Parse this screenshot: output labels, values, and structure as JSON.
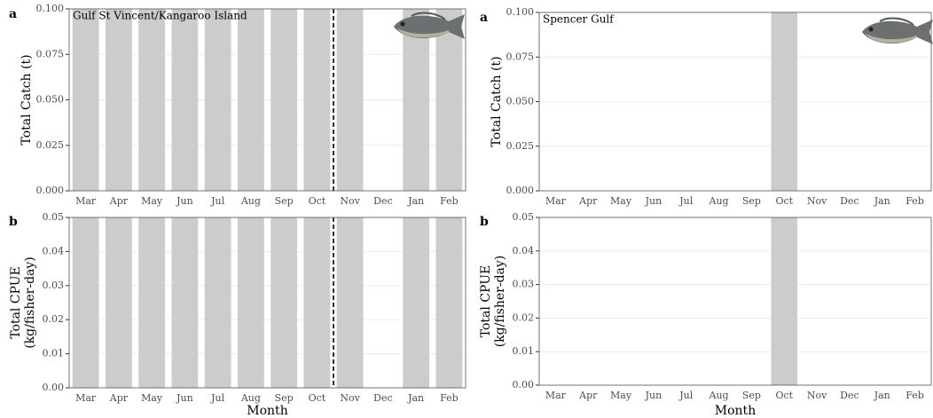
{
  "chart_data": [
    {
      "type": "bar",
      "tag": "a",
      "note": "Gulf St Vincent/Kangaroo Island",
      "ylabel": [
        "Total Catch (t)"
      ],
      "categories": [
        "Mar",
        "Apr",
        "May",
        "Jun",
        "Jul",
        "Aug",
        "Sep",
        "Oct",
        "Nov",
        "Dec",
        "Jan",
        "Feb"
      ],
      "values": [
        0.1,
        0.1,
        0.1,
        0.1,
        0.1,
        0.1,
        0.1,
        0.1,
        0.1,
        0,
        0.1,
        0.1
      ],
      "color": "#cccccc",
      "ylim": [
        0,
        0.1
      ],
      "yticks": [
        {
          "value": 0,
          "label": "0.000"
        },
        {
          "value": 0.025,
          "label": "0.025"
        },
        {
          "value": 0.05,
          "label": "0.050"
        },
        {
          "value": 0.075,
          "label": "0.075"
        },
        {
          "value": 0.1,
          "label": "0.100"
        }
      ],
      "grid": true
    },
    {
      "type": "bar",
      "tag": "a",
      "note": "Spencer Gulf",
      "ylabel": [
        "Total Catch (t)"
      ],
      "categories": [
        "Mar",
        "Apr",
        "May",
        "Jun",
        "Jul",
        "Aug",
        "Sep",
        "Oct",
        "Nov",
        "Dec",
        "Jan",
        "Feb"
      ],
      "values": [
        0,
        0,
        0,
        0,
        0,
        0,
        0,
        0.1,
        0,
        0,
        0,
        0
      ],
      "color": "#cccccc",
      "ylim": [
        0,
        0.1
      ],
      "yticks": [
        {
          "value": 0,
          "label": "0.000"
        },
        {
          "value": 0.025,
          "label": "0.025"
        },
        {
          "value": 0.05,
          "label": "0.050"
        },
        {
          "value": 0.075,
          "label": "0.075"
        },
        {
          "value": 0.1,
          "label": "0.100"
        }
      ],
      "grid": true
    },
    {
      "type": "bar",
      "tag": "b",
      "ylabel": [
        "Total CPUE",
        "(kg/fisher-day)"
      ],
      "xlabel": "Month",
      "categories": [
        "Mar",
        "Apr",
        "May",
        "Jun",
        "Jul",
        "Aug",
        "Sep",
        "Oct",
        "Nov",
        "Dec",
        "Jan",
        "Feb"
      ],
      "values": [
        0.05,
        0.05,
        0.05,
        0.05,
        0.05,
        0.05,
        0.05,
        0.05,
        0.05,
        0,
        0.05,
        0.05
      ],
      "color": "#cccccc",
      "ylim": [
        0,
        0.05
      ],
      "yticks": [
        {
          "value": 0,
          "label": "0.00"
        },
        {
          "value": 0.01,
          "label": "0.01"
        },
        {
          "value": 0.02,
          "label": "0.02"
        },
        {
          "value": 0.03,
          "label": "0.03"
        },
        {
          "value": 0.04,
          "label": "0.04"
        },
        {
          "value": 0.05,
          "label": "0.05"
        }
      ],
      "grid": true
    },
    {
      "type": "bar",
      "tag": "b",
      "ylabel": [
        "Total CPUE",
        "(kg/fisher-day)"
      ],
      "xlabel": "Month",
      "categories": [
        "Mar",
        "Apr",
        "May",
        "Jun",
        "Jul",
        "Aug",
        "Sep",
        "Oct",
        "Nov",
        "Dec",
        "Jan",
        "Feb"
      ],
      "values": [
        0,
        0,
        0,
        0,
        0,
        0,
        0,
        0.05,
        0,
        0,
        0,
        0
      ],
      "color": "#cccccc",
      "ylim": [
        0,
        0.05
      ],
      "yticks": [
        {
          "value": 0,
          "label": "0.00"
        },
        {
          "value": 0.01,
          "label": "0.01"
        },
        {
          "value": 0.02,
          "label": "0.02"
        },
        {
          "value": 0.03,
          "label": "0.03"
        },
        {
          "value": 0.04,
          "label": "0.04"
        },
        {
          "value": 0.05,
          "label": "0.05"
        }
      ],
      "grid": true
    }
  ]
}
